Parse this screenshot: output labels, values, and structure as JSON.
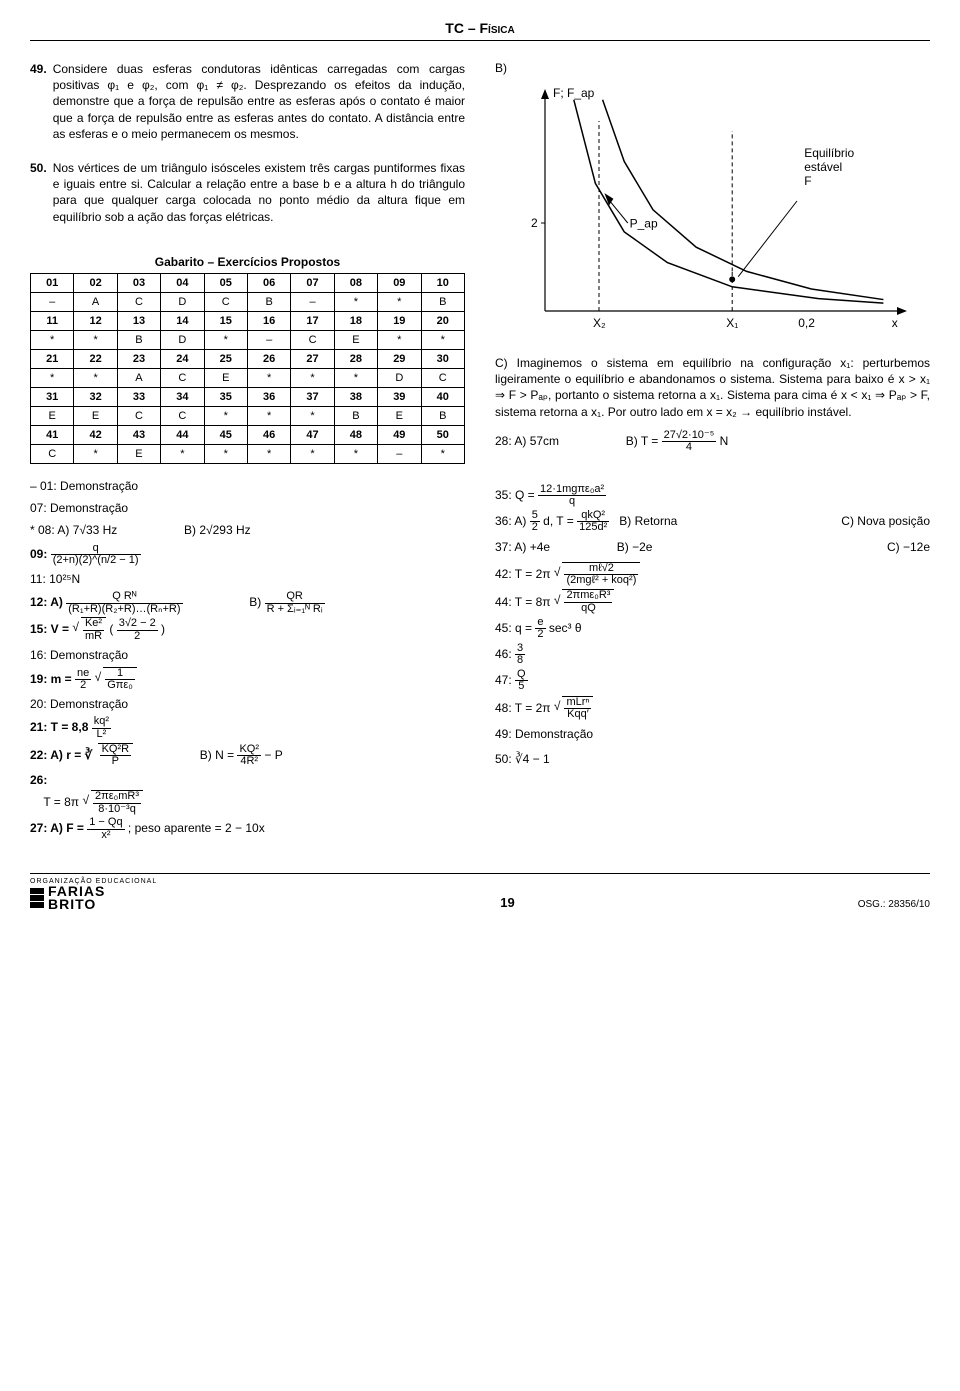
{
  "header": {
    "title": "TC – Física"
  },
  "questions": {
    "q49": {
      "num": "49.",
      "text": "Considere duas esferas condutoras idênticas carregadas com cargas positivas φ₁ e φ₂, com φ₁ ≠ φ₂. Desprezando os efeitos da indução, demonstre que a força de repulsão entre as esferas após o contato é maior que a força de repulsão entre as esferas antes do contato. A distância entre as esferas e o meio permanecem os mesmos."
    },
    "q50": {
      "num": "50.",
      "text": "Nos vértices de um triângulo isósceles existem três cargas puntiformes fixas e iguais entre si. Calcular a relação entre a base b e a altura h do triângulo para que qualquer carga colocada no ponto médio da altura fique em equilíbrio sob a ação das forças elétricas."
    }
  },
  "chart": {
    "type": "line",
    "label_B": "B)",
    "y_label": "F; F_ap",
    "y_tick": "2",
    "x_ticks": [
      "X₂",
      "X₁",
      "0,2",
      "x"
    ],
    "annot_Pap": "P_ap",
    "annot_equilibrio": "Equilíbrio\nestável\nF",
    "stroke_color": "#000000",
    "background_color": "#ffffff",
    "xlim": [
      0,
      10
    ],
    "ylim": [
      0,
      5
    ],
    "curve1_points": [
      [
        0.8,
        4.8
      ],
      [
        1.4,
        2.9
      ],
      [
        2.2,
        1.8
      ],
      [
        3.4,
        1.1
      ],
      [
        5.2,
        0.55
      ],
      [
        7.6,
        0.28
      ],
      [
        9.4,
        0.18
      ]
    ],
    "curve2_points": [
      [
        1.6,
        4.8
      ],
      [
        2.2,
        3.4
      ],
      [
        3.0,
        2.3
      ],
      [
        4.2,
        1.45
      ],
      [
        5.6,
        0.9
      ],
      [
        7.4,
        0.5
      ],
      [
        9.4,
        0.26
      ]
    ],
    "dash_x1": 5.2,
    "dash_x2": 1.5
  },
  "explain_C": "C) Imaginemos o sistema em equilíbrio na configuração x₁: perturbemos ligeiramente o equilíbrio e abandonamos o sistema. Sistema para baixo é x > x₁ ⇒ F > Pₐₚ, portanto o sistema retorna a x₁. Sistema para cima é x < x₁ ⇒ Pₐₚ > F, sistema retorna a x₁. Por outro lado em x = x₂ → equilíbrio instável.",
  "ans28": {
    "a": "28: A) 57cm",
    "b_label": "B) T =",
    "b_num": "27√2·10⁻⁵",
    "b_den": "4",
    "b_suffix": "N"
  },
  "gabarito": {
    "title": "Gabarito – Exercícios Propostos",
    "rows": [
      [
        "01",
        "02",
        "03",
        "04",
        "05",
        "06",
        "07",
        "08",
        "09",
        "10"
      ],
      [
        "–",
        "A",
        "C",
        "D",
        "C",
        "B",
        "–",
        "*",
        "*",
        "B"
      ],
      [
        "11",
        "12",
        "13",
        "14",
        "15",
        "16",
        "17",
        "18",
        "19",
        "20"
      ],
      [
        "*",
        "*",
        "B",
        "D",
        "*",
        "–",
        "C",
        "E",
        "*",
        "*"
      ],
      [
        "21",
        "22",
        "23",
        "24",
        "25",
        "26",
        "27",
        "28",
        "29",
        "30"
      ],
      [
        "*",
        "*",
        "A",
        "C",
        "E",
        "*",
        "*",
        "*",
        "D",
        "C"
      ],
      [
        "31",
        "32",
        "33",
        "34",
        "35",
        "36",
        "37",
        "38",
        "39",
        "40"
      ],
      [
        "E",
        "E",
        "C",
        "C",
        "*",
        "*",
        "*",
        "B",
        "E",
        "B"
      ],
      [
        "41",
        "42",
        "43",
        "44",
        "45",
        "46",
        "47",
        "48",
        "49",
        "50"
      ],
      [
        "C",
        "*",
        "E",
        "*",
        "*",
        "*",
        "*",
        "*",
        "–",
        "*"
      ]
    ]
  },
  "left_answers": {
    "l01": "– 01: Demonstração",
    "l07": "  07: Demonstração",
    "l08a": "* 08: A) 7√33 Hz",
    "l08b": "B) 2√293 Hz",
    "l09k": "  09:",
    "l09n": "q",
    "l09d": "(2+n)(2)^(n/2 − 1)",
    "l11": "  11: 10²⁵N",
    "l12a_k": "  12: A)",
    "l12a_n": "Q Rᴺ",
    "l12a_d": "(R₁+R)(R₂+R)…(Rₙ+R)",
    "l12b_k": "B)",
    "l12b_n": "QR",
    "l12b_d": "R + Σᵢ₌₁ᴺ Rᵢ",
    "l15k": "  15: V =",
    "l15in1": "Ke²",
    "l15in2": "mR",
    "l15p1": "3√2 − 2",
    "l15p2": "2",
    "l16": "  16: Demonstração",
    "l19k": "  19: m =",
    "l19a": "ne",
    "l19b": "2",
    "l19c": "1",
    "l19d": "Gπε₀",
    "l20": "  20: Demonstração",
    "l21k": "  21: T = 8,8",
    "l21n": "kq²",
    "l21d": "L²",
    "l22a_k": "  22: A) r = ∛",
    "l22a_n": "KQ²R",
    "l22a_d": "P",
    "l22b_k": "B) N =",
    "l22b_n": "KQ²",
    "l22b_d": "4R²",
    "l22b_s": " − P",
    "l26k": "  26:",
    "l26_pre": "T = 8π",
    "l26_n": "2πε₀mR³",
    "l26_d": "8·10⁻³q",
    "l27k": "  27: A) F =",
    "l27n": "1 − Qq",
    "l27d": "x²",
    "l27s": "; peso aparente = 2 − 10x"
  },
  "right_answers": {
    "r35k": "35: Q =",
    "r35n": "12·1mgπε₀a²",
    "r35d": "q",
    "r36a_k": "36: A)",
    "r36a_n": "5",
    "r36a_d": "2",
    "r36a_mid": "d,  T =",
    "r36a_n2": "qkQ²",
    "r36a_d2": "125d²",
    "r36b": "B) Retorna",
    "r36c": "C) Nova posição",
    "r37a": "37: A) +4e",
    "r37b": "B) −2e",
    "r37c": "C) −12e",
    "r42k": "42: T = 2π",
    "r42n": "mℓ√2",
    "r42d": "(2mgℓ² + koq²)",
    "r44k": "44: T = 8π",
    "r44n": "2πmε₀R³",
    "r44d": "qQ",
    "r45k": "45: q =",
    "r45n": "e",
    "r45d": "2",
    "r45s": " sec³ θ",
    "r46k": "46:",
    "r46n": "3",
    "r46d": "8",
    "r47k": "47:",
    "r47n": "Q",
    "r47d": "5",
    "r48k": "48: T = 2π",
    "r48n": "mLrⁿ",
    "r48d": "Kqq′",
    "r49": "49: Demonstração",
    "r50k": "50:",
    "r50v": "∛4 − 1"
  },
  "footer": {
    "org_label": "ORGANIZAÇÃO EDUCACIONAL",
    "brand_l1": "FARIAS",
    "brand_l2": "BRITO",
    "page": "19",
    "osg": "OSG.: 28356/10"
  }
}
